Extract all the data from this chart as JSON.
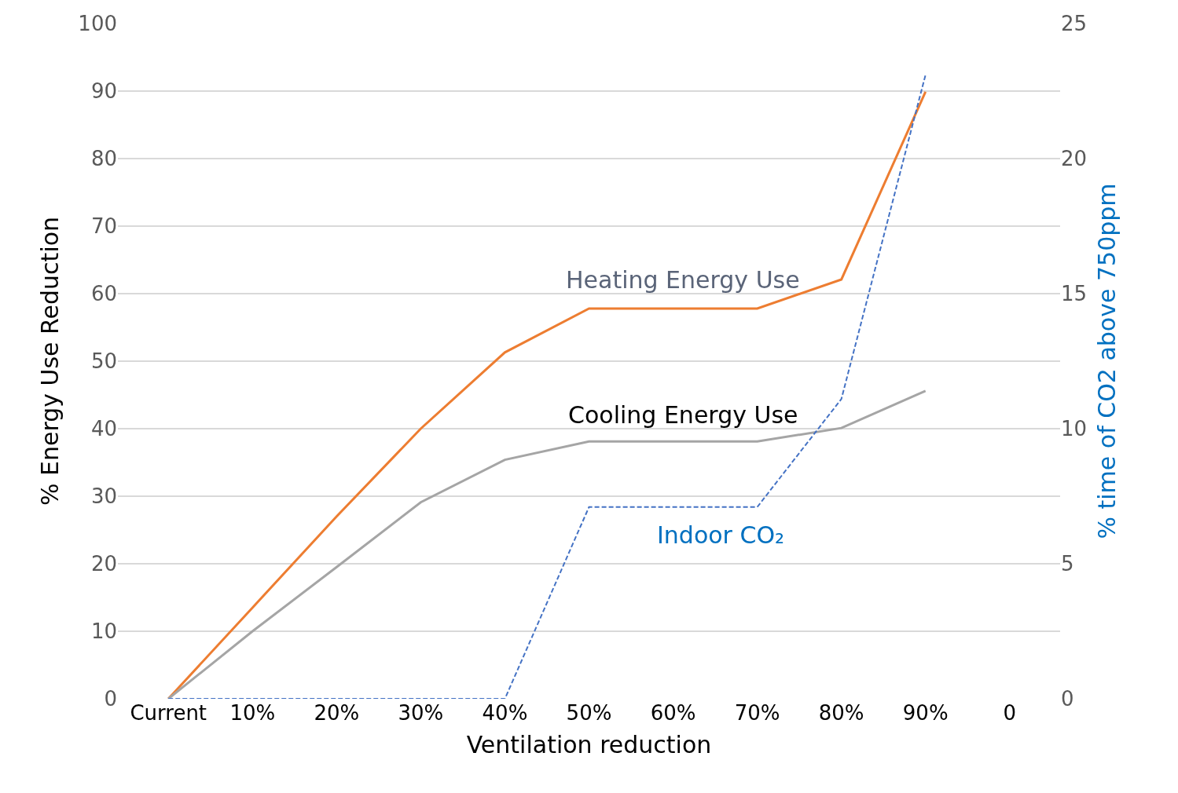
{
  "chart_data": {
    "type": "line",
    "xlabel": "Ventilation reduction",
    "ylabel": "% Energy Use Reduction",
    "y2label": "% time of CO2 above 750ppm",
    "categories": [
      "Current",
      "10%",
      "20%",
      "30%",
      "40%",
      "50%",
      "60%",
      "70%",
      "80%",
      "90%",
      "0"
    ],
    "series": [
      {
        "color": "#ed7d31",
        "line_style": "solid",
        "values": [
          0,
          13.5,
          27,
          40,
          51.3,
          57.8,
          57.8,
          57.8,
          62.1,
          89.9,
          null
        ]
      },
      {
        "color": "#a5a5a5",
        "line_style": "solid",
        "values": [
          0,
          10,
          19.5,
          29.1,
          35.4,
          38.1,
          38.1,
          38.1,
          40.1,
          45.6,
          null
        ]
      },
      {
        "color": "#4472c4",
        "line_style": "dashed",
        "axis": "y2",
        "values": [
          0,
          0,
          0,
          0,
          0,
          7.1,
          7.1,
          7.1,
          11.1,
          23.1,
          null
        ]
      }
    ],
    "ylim": [
      0,
      100
    ],
    "yticks": [
      0,
      10,
      20,
      30,
      40,
      50,
      60,
      70,
      80,
      90,
      100
    ],
    "y2lim": [
      0,
      25
    ],
    "y2ticks": [
      0,
      5,
      10,
      15,
      20,
      25
    ],
    "grid": "y",
    "marker": "none",
    "annotations": [
      "Heating Energy Use",
      "Cooling Energy Use",
      "Indoor CO₂"
    ]
  }
}
